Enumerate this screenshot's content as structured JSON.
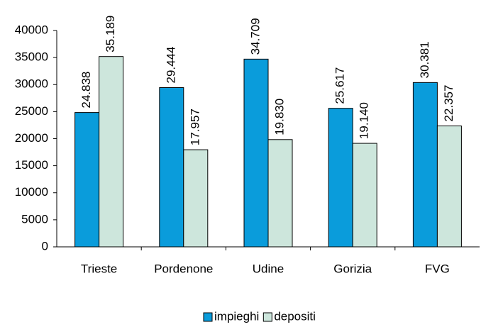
{
  "chart_data": {
    "type": "bar",
    "categories": [
      "Trieste",
      "Pordenone",
      "Udine",
      "Gorizia",
      "FVG"
    ],
    "series": [
      {
        "name": "impieghi",
        "color": "#0a9cdb",
        "values": [
          24838,
          29444,
          34709,
          25617,
          30381
        ],
        "value_labels": [
          "24.838",
          "29.444",
          "34.709",
          "25.617",
          "30.381"
        ]
      },
      {
        "name": "depositi",
        "color": "#cde6dc",
        "values": [
          35189,
          17957,
          19830,
          19140,
          22357
        ],
        "value_labels": [
          "35.189",
          "17.957",
          "19.830",
          "19.140",
          "22.357"
        ]
      }
    ],
    "ylim": [
      0,
      40000
    ],
    "yticks": [
      0,
      5000,
      10000,
      15000,
      20000,
      25000,
      30000,
      35000,
      40000
    ],
    "legend": "bottom"
  }
}
